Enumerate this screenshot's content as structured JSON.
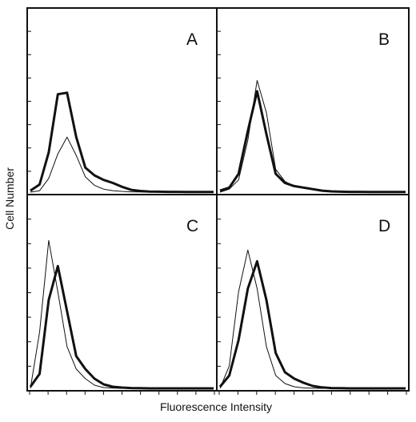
{
  "chart_data": {
    "type": "line",
    "xlabel": "Fluorescence Intensity",
    "ylabel": "Cell Number",
    "xlim": [
      0,
      10
    ],
    "ylim": [
      0,
      10
    ],
    "grid": false,
    "panels": [
      {
        "label": "A",
        "series": [
          {
            "style": "thick",
            "x": [
              0,
              0.5,
              1,
              1.5,
              2,
              2.5,
              3,
              3.5,
              4,
              4.5,
              5,
              5.5,
              6,
              6.5,
              7,
              7.5,
              8,
              8.5,
              9,
              9.5,
              10
            ],
            "y": [
              0.1,
              0.5,
              2.6,
              6.4,
              6.5,
              3.6,
              1.6,
              1.1,
              0.8,
              0.6,
              0.35,
              0.15,
              0.08,
              0.04,
              0.03,
              0.02,
              0.02,
              0.01,
              0.01,
              0.01,
              0.01
            ]
          },
          {
            "style": "thin",
            "x": [
              0,
              0.5,
              1,
              1.5,
              2,
              2.5,
              3,
              3.5,
              4,
              4.5,
              5,
              5.5,
              6,
              6.5,
              7,
              7.5,
              8,
              8.5,
              9,
              9.5,
              10
            ],
            "y": [
              0,
              0.1,
              0.9,
              2.5,
              3.6,
              2.4,
              1.0,
              0.45,
              0.2,
              0.1,
              0.05,
              0.02,
              0.01,
              0,
              0,
              0,
              0,
              0,
              0,
              0,
              0
            ]
          }
        ]
      },
      {
        "label": "B",
        "series": [
          {
            "style": "thick",
            "x": [
              0,
              0.5,
              1,
              1.5,
              2,
              2.5,
              3,
              3.5,
              4,
              4.5,
              5,
              5.5,
              6,
              6.5,
              7,
              7.5,
              8,
              8.5,
              9,
              9.5,
              10
            ],
            "y": [
              0.1,
              0.3,
              1.2,
              4.0,
              6.6,
              3.8,
              1.2,
              0.6,
              0.4,
              0.3,
              0.2,
              0.1,
              0.05,
              0.03,
              0.02,
              0.02,
              0.01,
              0.01,
              0.01,
              0.01,
              0.01
            ]
          },
          {
            "style": "thin",
            "x": [
              0,
              0.5,
              1,
              1.5,
              2,
              2.5,
              3,
              3.5,
              4,
              4.5,
              5,
              5.5,
              6,
              6.5,
              7,
              7.5,
              8,
              8.5,
              9,
              9.5,
              10
            ],
            "y": [
              0,
              0.2,
              0.8,
              3.4,
              7.3,
              5.2,
              1.5,
              0.7,
              0.4,
              0.3,
              0.15,
              0.08,
              0.03,
              0.02,
              0.01,
              0,
              0,
              0,
              0,
              0,
              0
            ]
          }
        ]
      },
      {
        "label": "C",
        "series": [
          {
            "style": "thick",
            "x": [
              0,
              0.5,
              1,
              1.5,
              2,
              2.5,
              3,
              3.5,
              4,
              4.5,
              5,
              5.5,
              6,
              6.5,
              7,
              7.5,
              8,
              8.5,
              9,
              9.5,
              10
            ],
            "y": [
              0.1,
              0.9,
              5.5,
              7.6,
              4.8,
              2.0,
              1.2,
              0.6,
              0.25,
              0.1,
              0.05,
              0.02,
              0.01,
              0,
              0,
              0,
              0,
              0,
              0,
              0,
              0
            ]
          },
          {
            "style": "thin",
            "x": [
              0,
              0.5,
              1,
              1.5,
              2,
              2.5,
              3,
              3.5,
              4,
              4.5,
              5,
              5.5,
              6,
              6.5,
              7,
              7.5,
              8,
              8.5,
              9,
              9.5,
              10
            ],
            "y": [
              0,
              3.5,
              9.2,
              6.0,
              2.6,
              1.2,
              0.6,
              0.2,
              0.05,
              0.02,
              0,
              0,
              0,
              0,
              0,
              0,
              0,
              0,
              0,
              0,
              0
            ]
          }
        ]
      },
      {
        "label": "D",
        "series": [
          {
            "style": "thick",
            "x": [
              0,
              0.5,
              1,
              1.5,
              2,
              2.5,
              3,
              3.5,
              4,
              4.5,
              5,
              5.5,
              6,
              6.5,
              7,
              7.5,
              8,
              8.5,
              9,
              9.5,
              10
            ],
            "y": [
              0.1,
              0.8,
              3.0,
              6.2,
              7.9,
              5.5,
              2.2,
              1.0,
              0.6,
              0.35,
              0.15,
              0.06,
              0.02,
              0.01,
              0,
              0,
              0,
              0,
              0,
              0,
              0
            ]
          },
          {
            "style": "thin",
            "x": [
              0,
              0.5,
              1,
              1.5,
              2,
              2.5,
              3,
              3.5,
              4,
              4.5,
              5,
              5.5,
              6,
              6.5,
              7,
              7.5,
              8,
              8.5,
              9,
              9.5,
              10
            ],
            "y": [
              0,
              1.4,
              6.0,
              8.6,
              6.2,
              2.6,
              0.8,
              0.3,
              0.1,
              0.03,
              0.01,
              0,
              0,
              0,
              0,
              0,
              0,
              0,
              0,
              0,
              0
            ]
          }
        ]
      }
    ]
  }
}
